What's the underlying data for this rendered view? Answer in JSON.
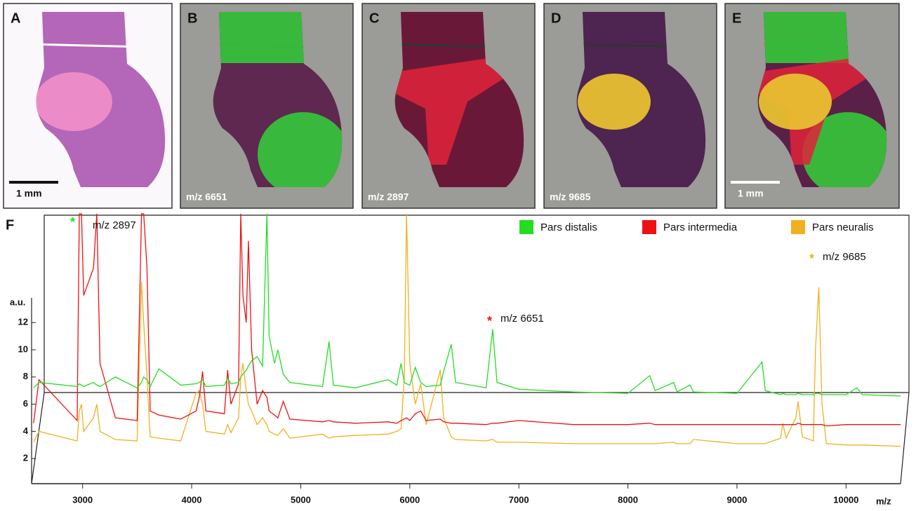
{
  "panels": [
    {
      "letter": "A",
      "scale_label": "1 mm"
    },
    {
      "letter": "B",
      "mz_label": "m/z 6651"
    },
    {
      "letter": "C",
      "mz_label": "m/z 2897"
    },
    {
      "letter": "D",
      "mz_label": "m/z 9685"
    },
    {
      "letter": "E",
      "scale_label": "1 mm"
    }
  ],
  "chart_data": {
    "type": "line",
    "panel_letter": "F",
    "y_label": "a.u.",
    "x_label": "m/z",
    "annotations": [
      "*",
      "m/z 2897",
      "*",
      "m/z 6651",
      "*",
      "m/z 9685"
    ],
    "xlim": [
      2500,
      10500
    ],
    "xticks": [
      3000,
      4000,
      5000,
      6000,
      7000,
      8000,
      9000,
      10000
    ],
    "ylim": [
      0,
      20
    ],
    "yticks": [
      2,
      4,
      6,
      8,
      10,
      12
    ],
    "x": [
      2550,
      2600,
      2950,
      2970,
      2990,
      3010,
      3100,
      3130,
      3160,
      3300,
      3500,
      3540,
      3560,
      3590,
      3620,
      3700,
      3900,
      4040,
      4070,
      4100,
      4130,
      4300,
      4330,
      4360,
      4430,
      4450,
      4470,
      4500,
      4520,
      4550,
      4600,
      4650,
      4690,
      4710,
      4760,
      4790,
      4840,
      4900,
      5200,
      5260,
      5300,
      5500,
      5800,
      5880,
      5920,
      5950,
      5970,
      6000,
      6050,
      6100,
      6150,
      6280,
      6310,
      6380,
      6420,
      6700,
      6760,
      6800,
      7000,
      7500,
      8000,
      8200,
      8250,
      8420,
      8450,
      8570,
      8600,
      9000,
      9230,
      9260,
      9400,
      9420,
      9450,
      9540,
      9560,
      9600,
      9700,
      9720,
      9750,
      9780,
      9820,
      10000,
      10100,
      10150,
      10500
    ],
    "series": [
      {
        "name": "Pars distalis",
        "color": "#22dd22",
        "values": [
          7.2,
          7.6,
          7.3,
          7.5,
          7.4,
          7.3,
          7.6,
          7.4,
          7.3,
          8.0,
          7.2,
          7.6,
          8.0,
          7.8,
          7.3,
          8.6,
          7.4,
          7.5,
          7.6,
          7.8,
          7.3,
          7.4,
          7.9,
          7.5,
          7.6,
          8.0,
          8.2,
          8.5,
          8.8,
          9.2,
          9.5,
          8.8,
          20,
          11,
          9.0,
          10,
          8.2,
          7.6,
          7.3,
          10.6,
          7.4,
          7.2,
          7.8,
          7.4,
          9.0,
          7.6,
          7.5,
          7.4,
          8.7,
          7.6,
          7.3,
          7.4,
          8.4,
          10.4,
          7.6,
          7.2,
          11.5,
          7.6,
          7.1,
          6.9,
          6.8,
          8.1,
          7.0,
          7.6,
          6.9,
          7.4,
          6.9,
          6.8,
          9.1,
          7.0,
          6.7,
          6.8,
          6.7,
          6.7,
          6.8,
          6.7,
          6.7,
          6.8,
          6.8,
          6.7,
          6.7,
          6.7,
          7.2,
          6.7,
          6.6
        ]
      },
      {
        "name": "Pars intermedia",
        "color": "#ee1111",
        "values": [
          4.6,
          7.8,
          4.8,
          20,
          20,
          14,
          16,
          20,
          9,
          5.0,
          4.8,
          20,
          20,
          16,
          5.5,
          5.2,
          4.9,
          5.5,
          6.5,
          8.4,
          5.5,
          5.3,
          8.5,
          6.0,
          7.5,
          20,
          14,
          12,
          18,
          10,
          6.0,
          7.0,
          6.5,
          5.5,
          5.2,
          5.0,
          6.2,
          4.9,
          4.7,
          4.8,
          4.7,
          4.6,
          4.7,
          4.6,
          4.8,
          4.9,
          5.0,
          4.8,
          5.3,
          5.5,
          4.8,
          4.9,
          4.7,
          4.6,
          4.6,
          4.5,
          4.6,
          4.6,
          4.8,
          4.5,
          4.5,
          4.6,
          4.5,
          4.5,
          4.5,
          4.5,
          4.5,
          4.5,
          4.5,
          4.5,
          4.5,
          4.5,
          4.5,
          4.5,
          4.6,
          4.5,
          4.5,
          4.5,
          4.5,
          4.5,
          4.4,
          4.5,
          4.5,
          4.5,
          4.5
        ]
      },
      {
        "name": "Pars neuralis",
        "color": "#f0b020",
        "values": [
          3.2,
          4.0,
          3.3,
          5.5,
          6,
          4,
          5,
          6,
          4,
          3.4,
          3.3,
          15,
          12,
          8,
          3.6,
          3.5,
          3.3,
          6.8,
          7.0,
          6.0,
          4.0,
          3.8,
          4.5,
          3.9,
          5.0,
          8.0,
          9.0,
          7.0,
          6.0,
          5.5,
          4.5,
          5.0,
          4.5,
          4.0,
          3.8,
          3.7,
          4.2,
          3.5,
          3.8,
          3.5,
          3.6,
          3.7,
          3.8,
          4.0,
          4.2,
          8,
          20,
          9,
          6.0,
          7.5,
          4.5,
          8.5,
          5.0,
          3.6,
          3.4,
          3.3,
          3.4,
          3.2,
          3.2,
          3.1,
          3.1,
          3.1,
          3.1,
          3.2,
          3.1,
          3.1,
          3.4,
          3.1,
          3.1,
          3.1,
          3.5,
          4.6,
          3.5,
          5.0,
          6.2,
          3.6,
          3.3,
          10,
          14.6,
          6,
          3.1,
          3.0,
          3.0,
          3.0,
          2.9
        ]
      }
    ]
  }
}
